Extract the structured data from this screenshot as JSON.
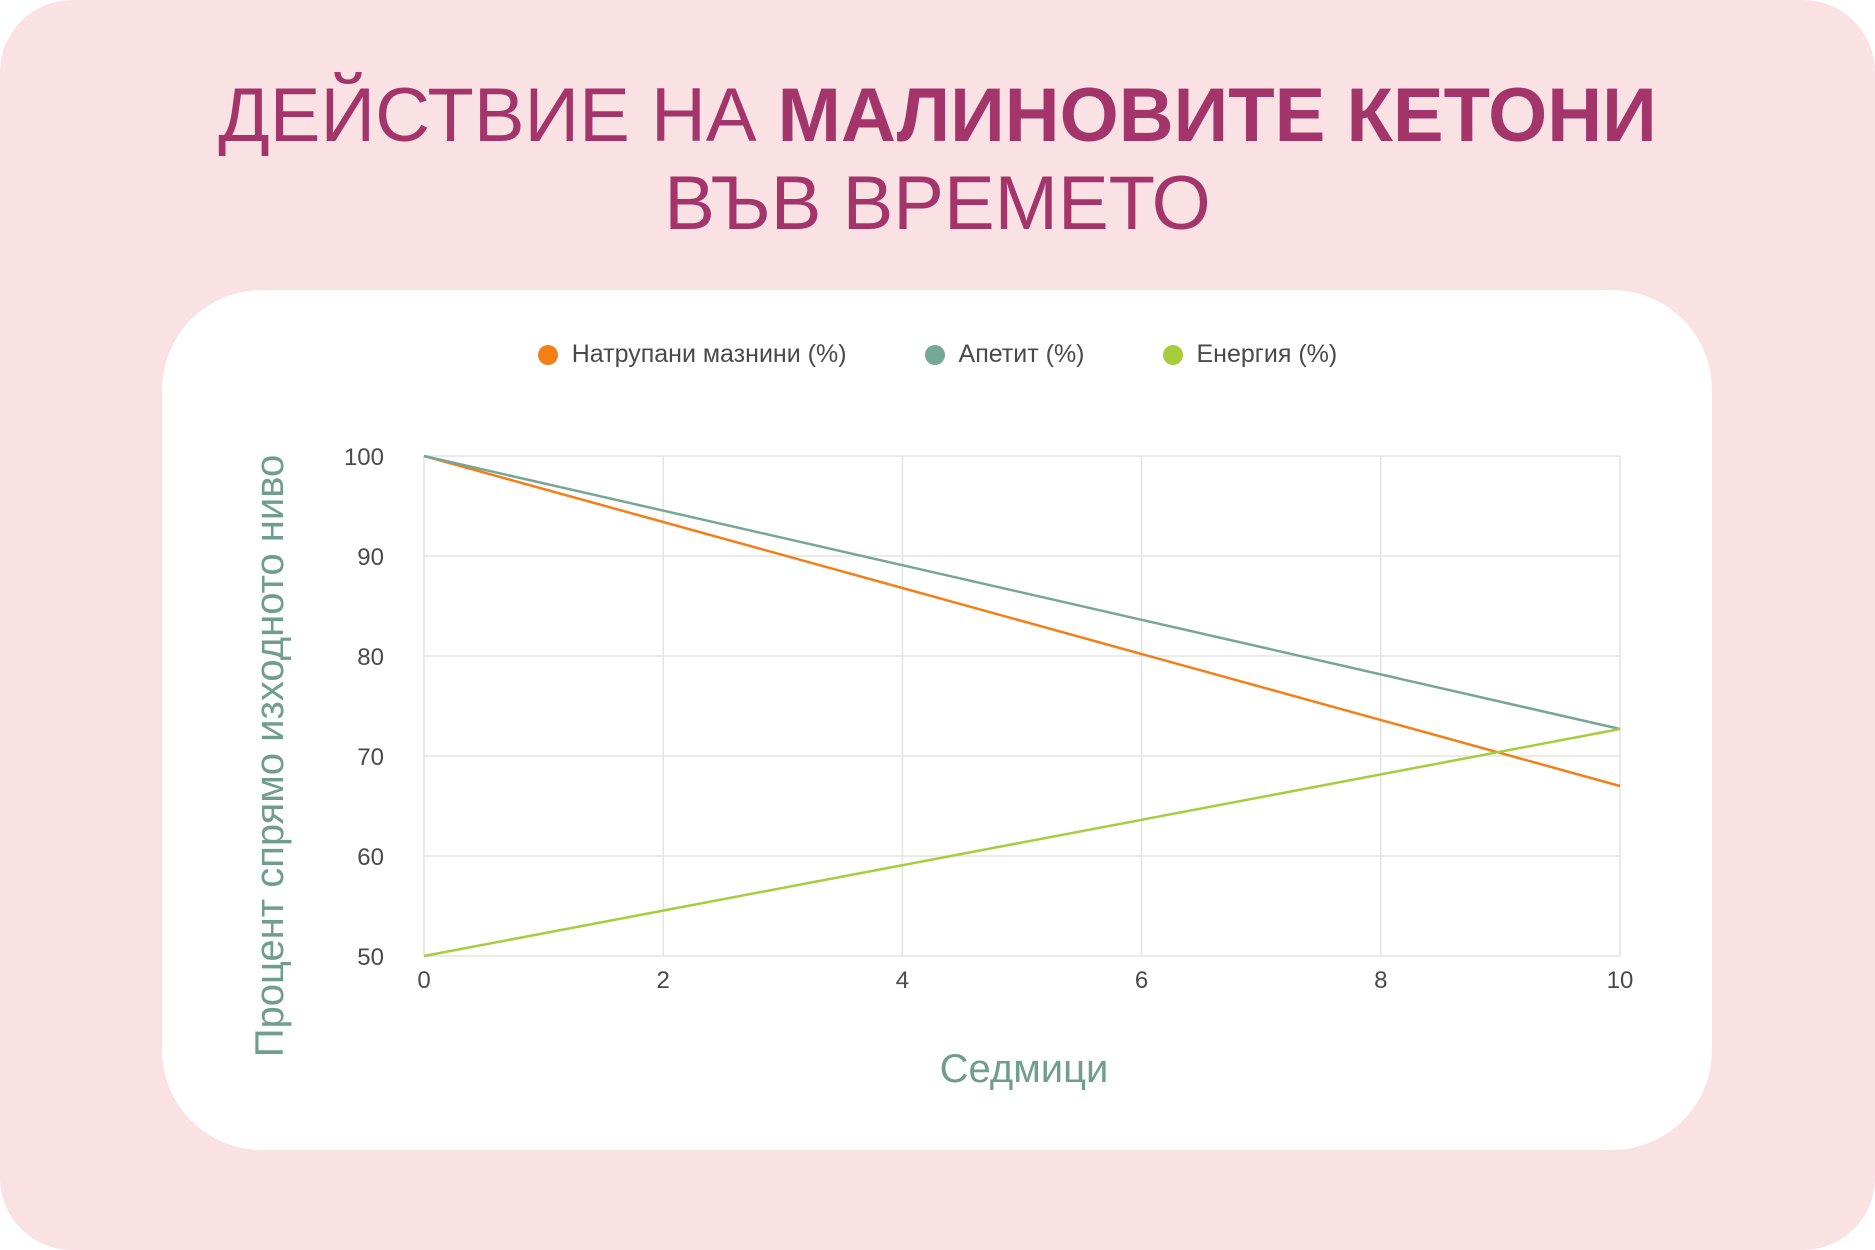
{
  "title": {
    "line1_prefix": "ДЕЙСТВИЕ НА ",
    "line1_bold": "МАЛИНОВИТЕ КЕТОНИ",
    "line2": "ВЪВ ВРЕМЕТО"
  },
  "colors": {
    "background": "#f9e1e4",
    "title": "#a3356a",
    "axis_title": "#6f9e8c"
  },
  "chart_data": {
    "type": "line",
    "xlabel": "Седмици",
    "ylabel": "Процент спрямо изходното ниво",
    "xlim": [
      0,
      10
    ],
    "ylim": [
      50,
      100
    ],
    "x_ticks": [
      0,
      2,
      4,
      6,
      8,
      10
    ],
    "y_ticks": [
      50,
      60,
      70,
      80,
      90,
      100
    ],
    "grid": true,
    "legend_position": "top-center",
    "series": [
      {
        "name": "Натрупани мазнини (%)",
        "color": "#f57f17",
        "x": [
          0,
          10
        ],
        "y": [
          100,
          67
        ]
      },
      {
        "name": "Апетит (%)",
        "color": "#76a696",
        "x": [
          0,
          10
        ],
        "y": [
          100,
          72.7
        ]
      },
      {
        "name": "Енергия (%)",
        "color": "#a6cd3c",
        "x": [
          0,
          10
        ],
        "y": [
          50,
          72.7
        ]
      }
    ]
  }
}
